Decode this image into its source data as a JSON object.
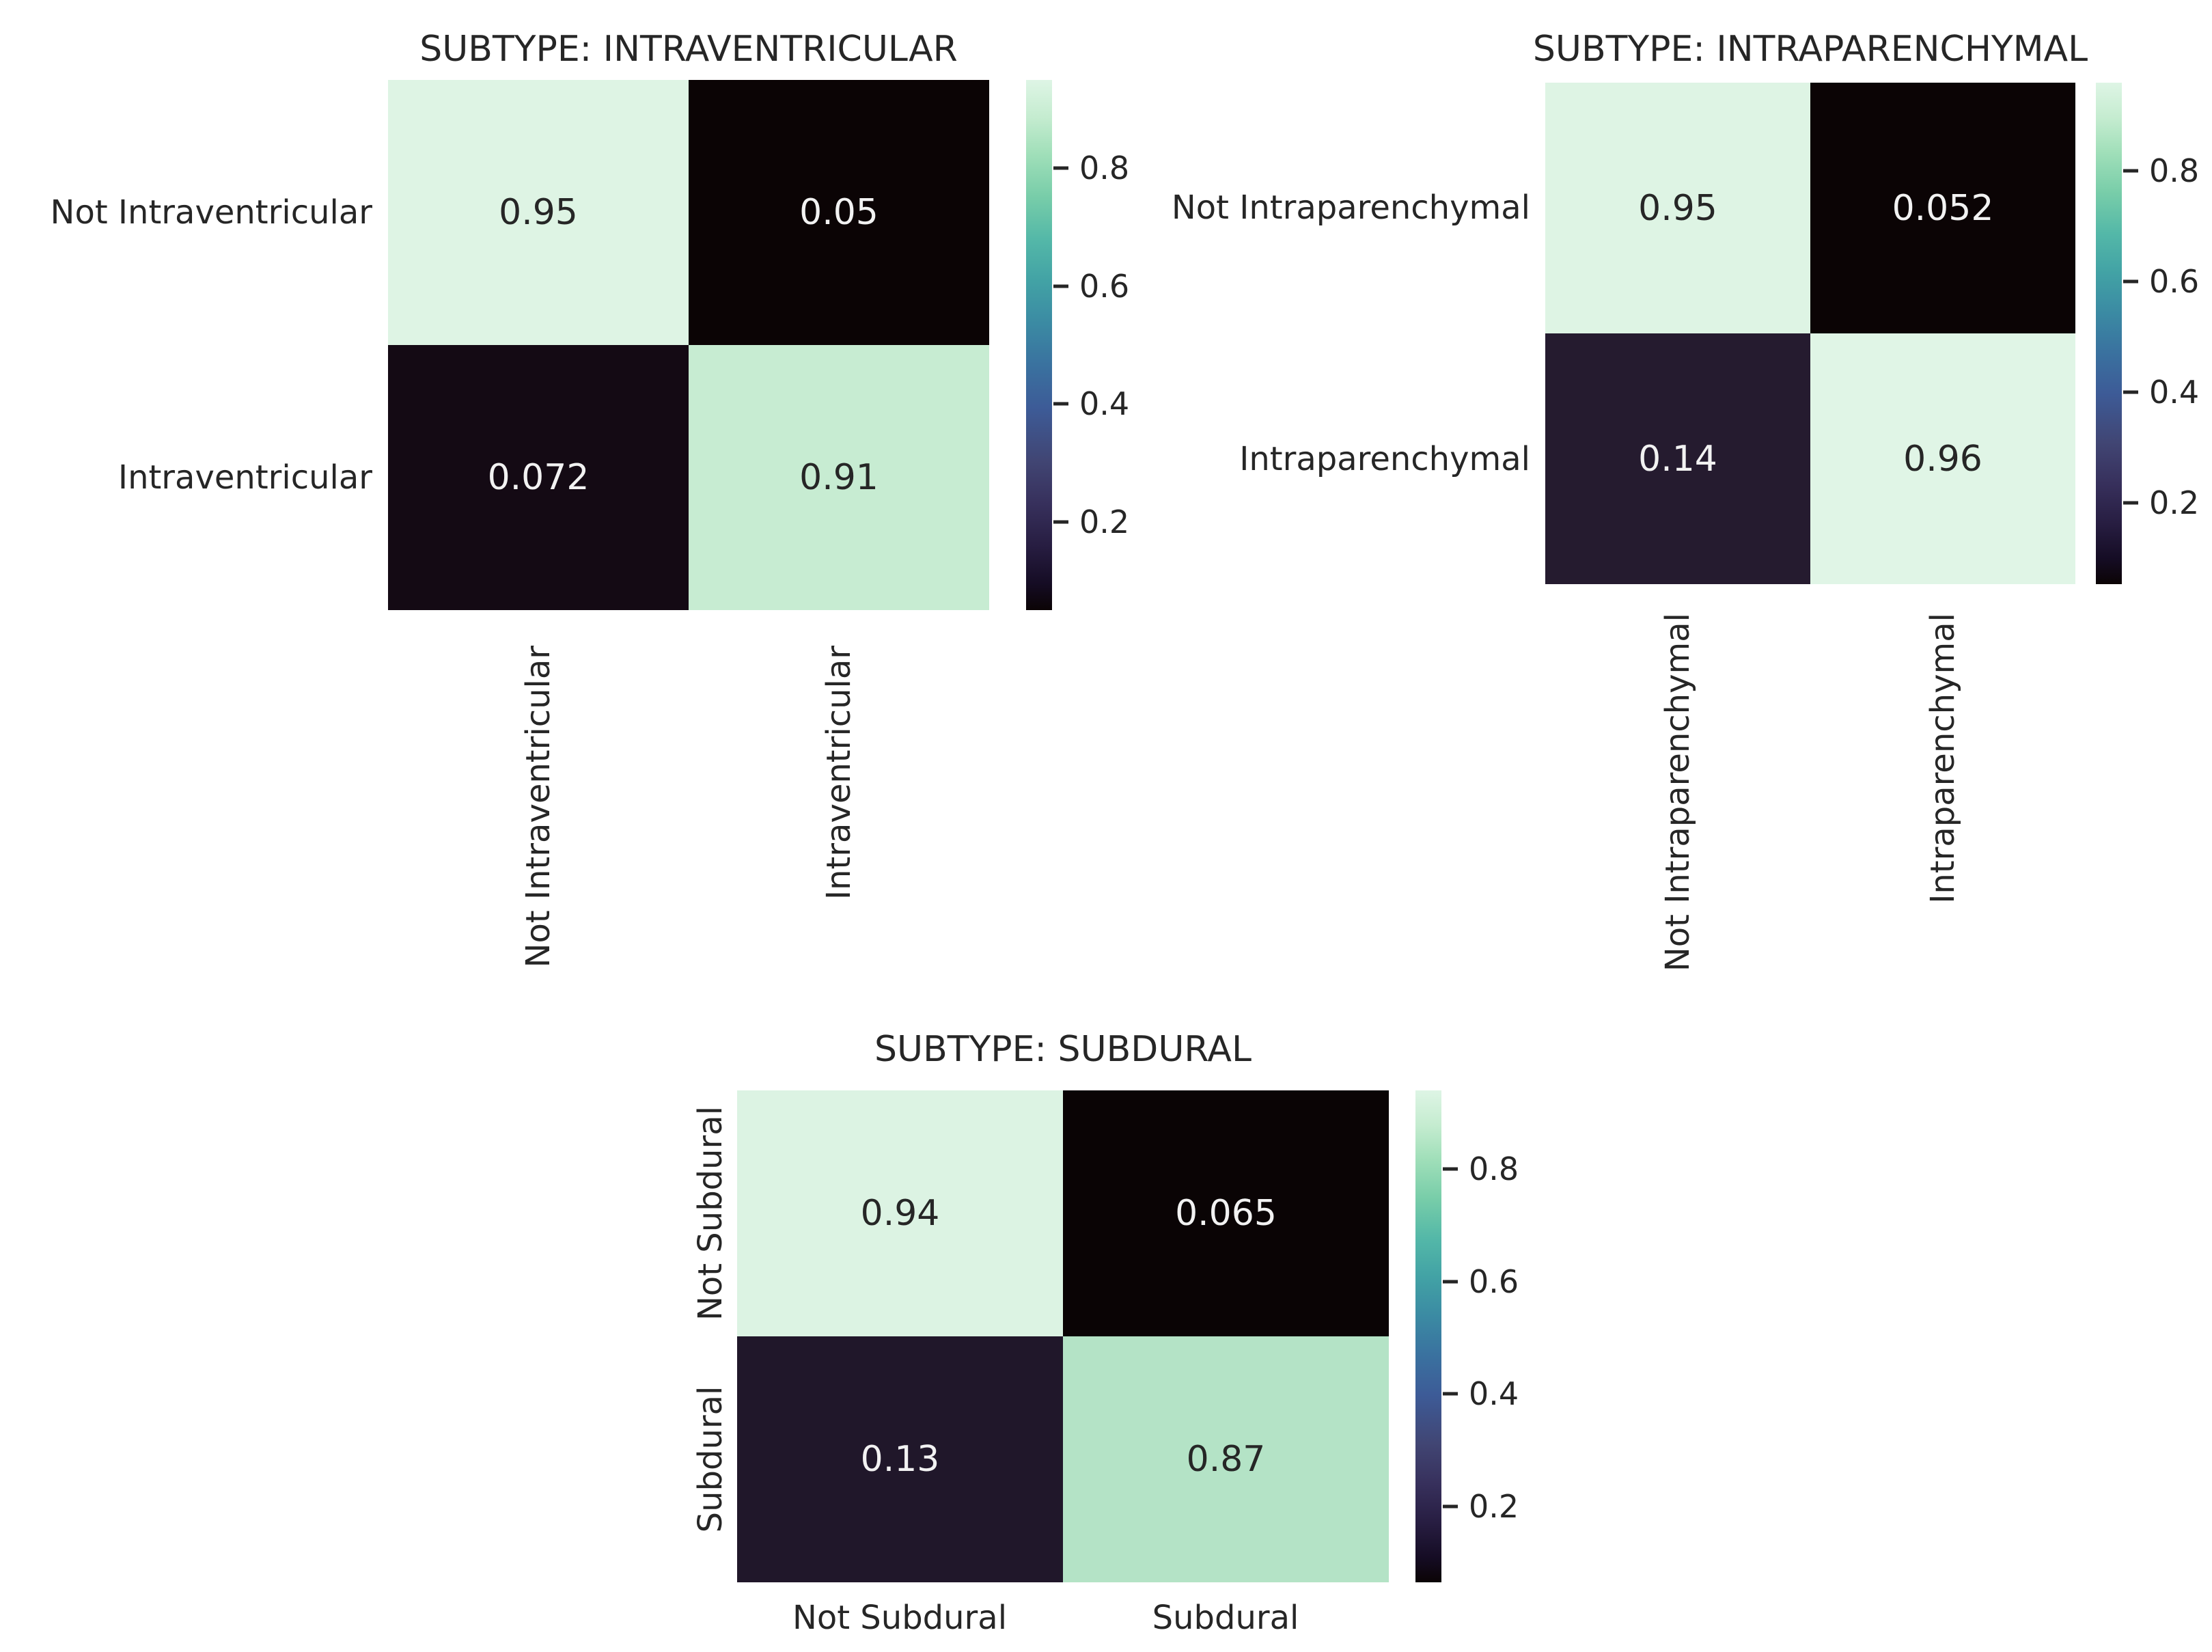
{
  "page": {
    "background": "#ffffff",
    "text_color": "#262626"
  },
  "colormap": {
    "name": "mako",
    "stops_top_to_bottom": [
      "#def5e5 0%",
      "#c5ecd0 7%",
      "#a0dfb9 14%",
      "#78cda9 22%",
      "#54b8a8 30%",
      "#42a2a5 38%",
      "#3b8aa3 46%",
      "#3a719f 54%",
      "#3d5b97 62%",
      "#414573 72%",
      "#37305c 80%",
      "#271d41 88%",
      "#150c24 95%",
      "#0b0405 100%"
    ]
  },
  "chart_data": [
    {
      "type": "heatmap",
      "title": "SUBTYPE: INTRAVENTRICULAR",
      "x_categories": [
        "Not Intraventricular",
        "Intraventricular"
      ],
      "y_categories": [
        "Not Intraventricular",
        "Intraventricular"
      ],
      "values": [
        [
          0.95,
          0.05
        ],
        [
          0.072,
          0.91
        ]
      ],
      "vmin": 0.05,
      "vmax": 0.95,
      "colormap": "mako",
      "legend_position": "right-colorbar",
      "tick_labels": [
        "0.8",
        "0.6",
        "0.4",
        "0.2"
      ],
      "cells": [
        {
          "text": "0.95",
          "style": "background-color:#def4e4;color:#262626"
        },
        {
          "text": "0.05",
          "style": "background-color:#0b0405;color:#f2f2f2"
        },
        {
          "text": "0.072",
          "style": "background-color:#140a14;color:#f2f2f2"
        },
        {
          "text": "0.91",
          "style": "background-color:#c7ecd2;color:#262626"
        }
      ]
    },
    {
      "type": "heatmap",
      "title": "SUBTYPE: INTRAPARENCHYMAL",
      "x_categories": [
        "Not Intraparenchymal",
        "Intraparenchymal"
      ],
      "y_categories": [
        "Not Intraparenchymal",
        "Intraparenchymal"
      ],
      "values": [
        [
          0.95,
          0.052
        ],
        [
          0.14,
          0.96
        ]
      ],
      "vmin": 0.052,
      "vmax": 0.96,
      "colormap": "mako",
      "legend_position": "right-colorbar",
      "tick_labels": [
        "0.8",
        "0.6",
        "0.4",
        "0.2"
      ],
      "cells": [
        {
          "text": "0.95",
          "style": "background-color:#def4e4;color:#262626"
        },
        {
          "text": "0.052",
          "style": "background-color:#0b0405;color:#f2f2f2"
        },
        {
          "text": "0.14",
          "style": "background-color:#251b2f;color:#f2f2f2"
        },
        {
          "text": "0.96",
          "style": "background-color:#e0f5e6;color:#262626"
        }
      ]
    },
    {
      "type": "heatmap",
      "title": "SUBTYPE: SUBDURAL",
      "x_categories": [
        "Not Subdural",
        "Subdural"
      ],
      "y_categories": [
        "Not Subdural",
        "Subdural"
      ],
      "values": [
        [
          0.94,
          0.065
        ],
        [
          0.13,
          0.87
        ]
      ],
      "vmin": 0.065,
      "vmax": 0.94,
      "colormap": "mako",
      "legend_position": "right-colorbar",
      "tick_labels": [
        "0.8",
        "0.6",
        "0.4",
        "0.2"
      ],
      "cells": [
        {
          "text": "0.94",
          "style": "background-color:#dcf3e3;color:#262626"
        },
        {
          "text": "0.065",
          "style": "background-color:#0a0405;color:#f2f2f2"
        },
        {
          "text": "0.13",
          "style": "background-color:#20172a;color:#f2f2f2"
        },
        {
          "text": "0.87",
          "style": "background-color:#b4e3c6;color:#262626"
        }
      ]
    }
  ]
}
